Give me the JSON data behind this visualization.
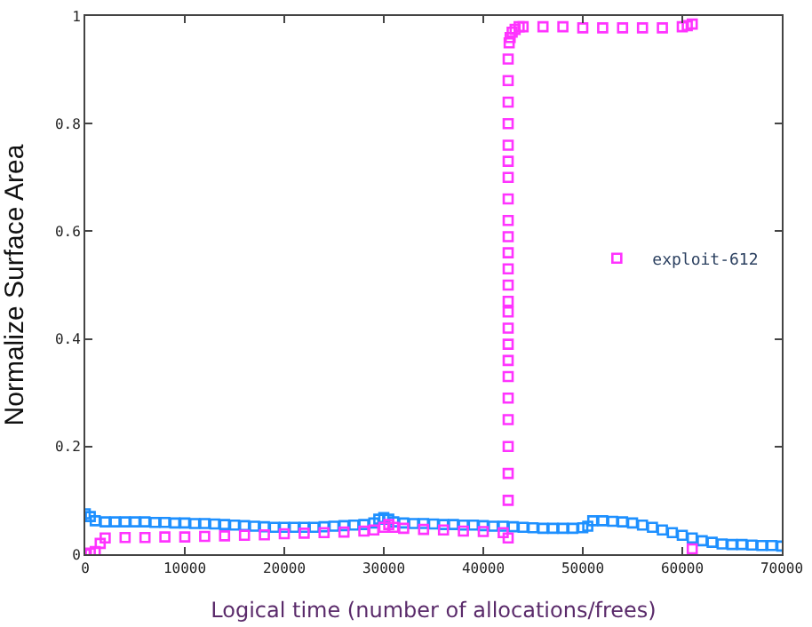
{
  "chart_data": {
    "type": "scatter",
    "xlabel": "Logical time (number of allocations/frees)",
    "ylabel": "Normalize Surface Area",
    "xlim": [
      0,
      70000
    ],
    "ylim": [
      0,
      1
    ],
    "xticks": [
      0,
      10000,
      20000,
      30000,
      40000,
      50000,
      60000,
      70000
    ],
    "yticks": [
      0,
      0.2,
      0.4,
      0.6,
      0.8,
      1
    ],
    "legend": "right",
    "marker": "square",
    "series": [
      {
        "color": "#1e90ff",
        "x": [
          0,
          500,
          1000,
          2000,
          3000,
          4000,
          5000,
          6000,
          7000,
          8000,
          9000,
          10000,
          11000,
          12000,
          13000,
          14000,
          15000,
          16000,
          17000,
          18000,
          19000,
          20000,
          21000,
          22000,
          23000,
          24000,
          25000,
          26000,
          27000,
          28000,
          29000,
          29500,
          30000,
          30500,
          31000,
          32000,
          33000,
          34000,
          35000,
          36000,
          37000,
          38000,
          39000,
          40000,
          41000,
          42000,
          43000,
          44000,
          45000,
          46000,
          47000,
          48000,
          49000,
          50000,
          50500,
          51000,
          52000,
          53000,
          54000,
          55000,
          56000,
          57000,
          58000,
          59000,
          60000,
          61000,
          62000,
          63000,
          64000,
          65000,
          66000,
          67000,
          68000,
          69000,
          70000
        ],
        "values": [
          0.075,
          0.07,
          0.062,
          0.06,
          0.06,
          0.06,
          0.06,
          0.06,
          0.059,
          0.059,
          0.058,
          0.058,
          0.057,
          0.057,
          0.056,
          0.055,
          0.054,
          0.053,
          0.052,
          0.051,
          0.05,
          0.05,
          0.05,
          0.05,
          0.05,
          0.051,
          0.052,
          0.053,
          0.054,
          0.055,
          0.058,
          0.065,
          0.068,
          0.065,
          0.06,
          0.058,
          0.057,
          0.057,
          0.056,
          0.055,
          0.055,
          0.054,
          0.054,
          0.053,
          0.052,
          0.052,
          0.051,
          0.05,
          0.049,
          0.048,
          0.048,
          0.048,
          0.048,
          0.049,
          0.052,
          0.062,
          0.062,
          0.061,
          0.06,
          0.058,
          0.054,
          0.05,
          0.045,
          0.04,
          0.035,
          0.03,
          0.025,
          0.022,
          0.019,
          0.018,
          0.018,
          0.017,
          0.016,
          0.016,
          0.015
        ]
      },
      {
        "name": "exploit-612",
        "color": "#ff33ff",
        "x": [
          0,
          500,
          1000,
          1500,
          2000,
          4000,
          6000,
          8000,
          10000,
          12000,
          14000,
          16000,
          18000,
          20000,
          22000,
          24000,
          26000,
          28000,
          29000,
          30000,
          30500,
          31000,
          32000,
          34000,
          36000,
          38000,
          40000,
          42000,
          42500,
          42500,
          42500,
          42500,
          42500,
          42500,
          42500,
          42500,
          42500,
          42500,
          42500,
          42500,
          42500,
          42500,
          42500,
          42500,
          42500,
          42500,
          42500,
          42500,
          42500,
          42500,
          42500,
          42500,
          42500,
          42600,
          42700,
          42900,
          43200,
          43600,
          44000,
          46000,
          48000,
          50000,
          52000,
          54000,
          56000,
          58000,
          60000,
          60500,
          61000,
          61000
        ],
        "values": [
          0.0,
          0.002,
          0.005,
          0.02,
          0.03,
          0.031,
          0.031,
          0.032,
          0.032,
          0.033,
          0.034,
          0.035,
          0.036,
          0.038,
          0.039,
          0.04,
          0.041,
          0.043,
          0.045,
          0.05,
          0.055,
          0.05,
          0.048,
          0.046,
          0.045,
          0.043,
          0.042,
          0.04,
          0.03,
          0.1,
          0.15,
          0.2,
          0.25,
          0.29,
          0.33,
          0.36,
          0.39,
          0.42,
          0.45,
          0.47,
          0.5,
          0.53,
          0.56,
          0.59,
          0.62,
          0.66,
          0.7,
          0.73,
          0.76,
          0.8,
          0.84,
          0.88,
          0.92,
          0.95,
          0.96,
          0.97,
          0.975,
          0.98,
          0.98,
          0.98,
          0.98,
          0.978,
          0.978,
          0.978,
          0.978,
          0.978,
          0.98,
          0.982,
          0.985,
          0.01
        ]
      }
    ]
  }
}
